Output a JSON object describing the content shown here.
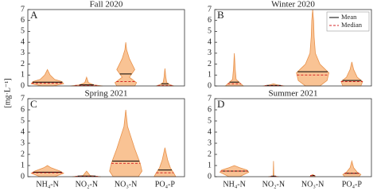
{
  "chart_data": [
    {
      "type": "violin",
      "title": "Fall 2020",
      "letter": "A",
      "ylabel": "[mg·L⁻¹]",
      "ylim": [
        0,
        7
      ],
      "yticks": [
        0,
        1,
        2,
        3,
        4,
        5,
        6,
        7
      ],
      "color": "#f9c394",
      "edge": "#e8914a",
      "violins": [
        {
          "mean": 0.35,
          "median": 0.25,
          "y": [
            0,
            0.2,
            0.4,
            0.6,
            1.0,
            1.5
          ],
          "width": [
            0.3,
            0.9,
            0.8,
            0.4,
            0.15,
            0
          ]
        },
        {
          "mean": 0.1,
          "median": 0.05,
          "y": [
            0,
            0.1,
            0.3,
            0.8
          ],
          "width": [
            0.9,
            0.4,
            0.1,
            0
          ]
        },
        {
          "mean": 1.1,
          "median": 0.4,
          "y": [
            0,
            0.3,
            0.8,
            1.5,
            2.5,
            3.3,
            4.0
          ],
          "width": [
            0.5,
            0.6,
            0.2,
            0.5,
            0.2,
            0.05,
            0
          ]
        },
        {
          "mean": 0.2,
          "median": 0.05,
          "y": [
            0,
            0.1,
            0.3,
            0.8,
            1.6
          ],
          "width": [
            0.5,
            0.3,
            0.1,
            0.05,
            0
          ]
        }
      ]
    },
    {
      "type": "violin",
      "title": "Winter 2020",
      "letter": "B",
      "ylim": [
        0,
        7
      ],
      "yticks": [
        0,
        1,
        2,
        3,
        4,
        5,
        6,
        7
      ],
      "color": "#f9c394",
      "edge": "#e8914a",
      "legend": {
        "mean": "Mean",
        "median": "Median"
      },
      "violins": [
        {
          "mean": 0.35,
          "median": 0.2,
          "y": [
            0,
            0.3,
            0.6,
            1.5,
            3.0
          ],
          "width": [
            0.5,
            0.3,
            0.1,
            0.05,
            0
          ]
        },
        {
          "mean": 0.05,
          "median": 0.03,
          "y": [
            0,
            0.1,
            0.2
          ],
          "width": [
            0.6,
            0.2,
            0
          ]
        },
        {
          "mean": 1.3,
          "median": 1.0,
          "y": [
            0,
            0.5,
            1.2,
            2.0,
            3.0,
            4.5,
            6,
            7
          ],
          "width": [
            0.4,
            0.8,
            0.9,
            0.4,
            0.15,
            0.08,
            0.05,
            0
          ]
        },
        {
          "mean": 0.5,
          "median": 0.4,
          "y": [
            0,
            0.4,
            0.8,
            1.5,
            2.2
          ],
          "width": [
            0.5,
            0.6,
            0.3,
            0.1,
            0
          ]
        }
      ]
    },
    {
      "type": "violin",
      "title": "Spring 2021",
      "letter": "C",
      "ylim": [
        0,
        7
      ],
      "yticks": [
        0,
        1,
        2,
        3,
        4,
        5,
        6,
        7
      ],
      "color": "#f9c394",
      "edge": "#e8914a",
      "categories": [
        "NH₄-N",
        "NO₂-N",
        "NO₃-N",
        "PO₄-P"
      ],
      "violins": [
        {
          "mean": 0.4,
          "median": 0.35,
          "y": [
            0,
            0.3,
            0.5,
            0.8,
            1.0
          ],
          "width": [
            0.4,
            0.9,
            0.7,
            0.2,
            0
          ]
        },
        {
          "mean": 0.05,
          "median": 0.03,
          "y": [
            0,
            0.1,
            0.5
          ],
          "width": [
            0.8,
            0.2,
            0
          ]
        },
        {
          "mean": 1.4,
          "median": 1.2,
          "y": [
            0,
            0.5,
            1.2,
            2.5,
            3.5,
            4.5,
            6
          ],
          "width": [
            0.7,
            0.9,
            0.8,
            0.5,
            0.3,
            0.1,
            0
          ]
        },
        {
          "mean": 0.6,
          "median": 0.35,
          "y": [
            0,
            0.3,
            0.8,
            1.5,
            2.6
          ],
          "width": [
            0.6,
            0.5,
            0.3,
            0.15,
            0
          ]
        }
      ]
    },
    {
      "type": "violin",
      "title": "Summer 2021",
      "letter": "D",
      "ylim": [
        0,
        7
      ],
      "yticks": [
        0,
        1,
        2,
        3,
        4,
        5,
        6,
        7
      ],
      "color": "#f9c394",
      "edge": "#e8914a",
      "categories": [
        "NH₄-N",
        "NO₂-N",
        "NO₃-N",
        "PO₄-P"
      ],
      "violins": [
        {
          "mean": 0.5,
          "median": 0.5,
          "y": [
            0,
            0.4,
            0.6,
            0.8,
            1.0
          ],
          "width": [
            0.3,
            0.8,
            0.7,
            0.3,
            0
          ]
        },
        {
          "mean": 0.05,
          "median": 0.02,
          "y": [
            0,
            0.05,
            1.4
          ],
          "width": [
            0.3,
            0.02,
            0
          ]
        },
        {
          "mean": 0.1,
          "median": 0.1,
          "y": [
            0,
            0.1,
            0.2
          ],
          "width": [
            0.15,
            0.1,
            0
          ]
        },
        {
          "mean": 0.3,
          "median": 0.3,
          "y": [
            0,
            0.2,
            0.4,
            0.8,
            1.4
          ],
          "width": [
            0.4,
            0.5,
            0.3,
            0.1,
            0
          ]
        }
      ]
    }
  ]
}
